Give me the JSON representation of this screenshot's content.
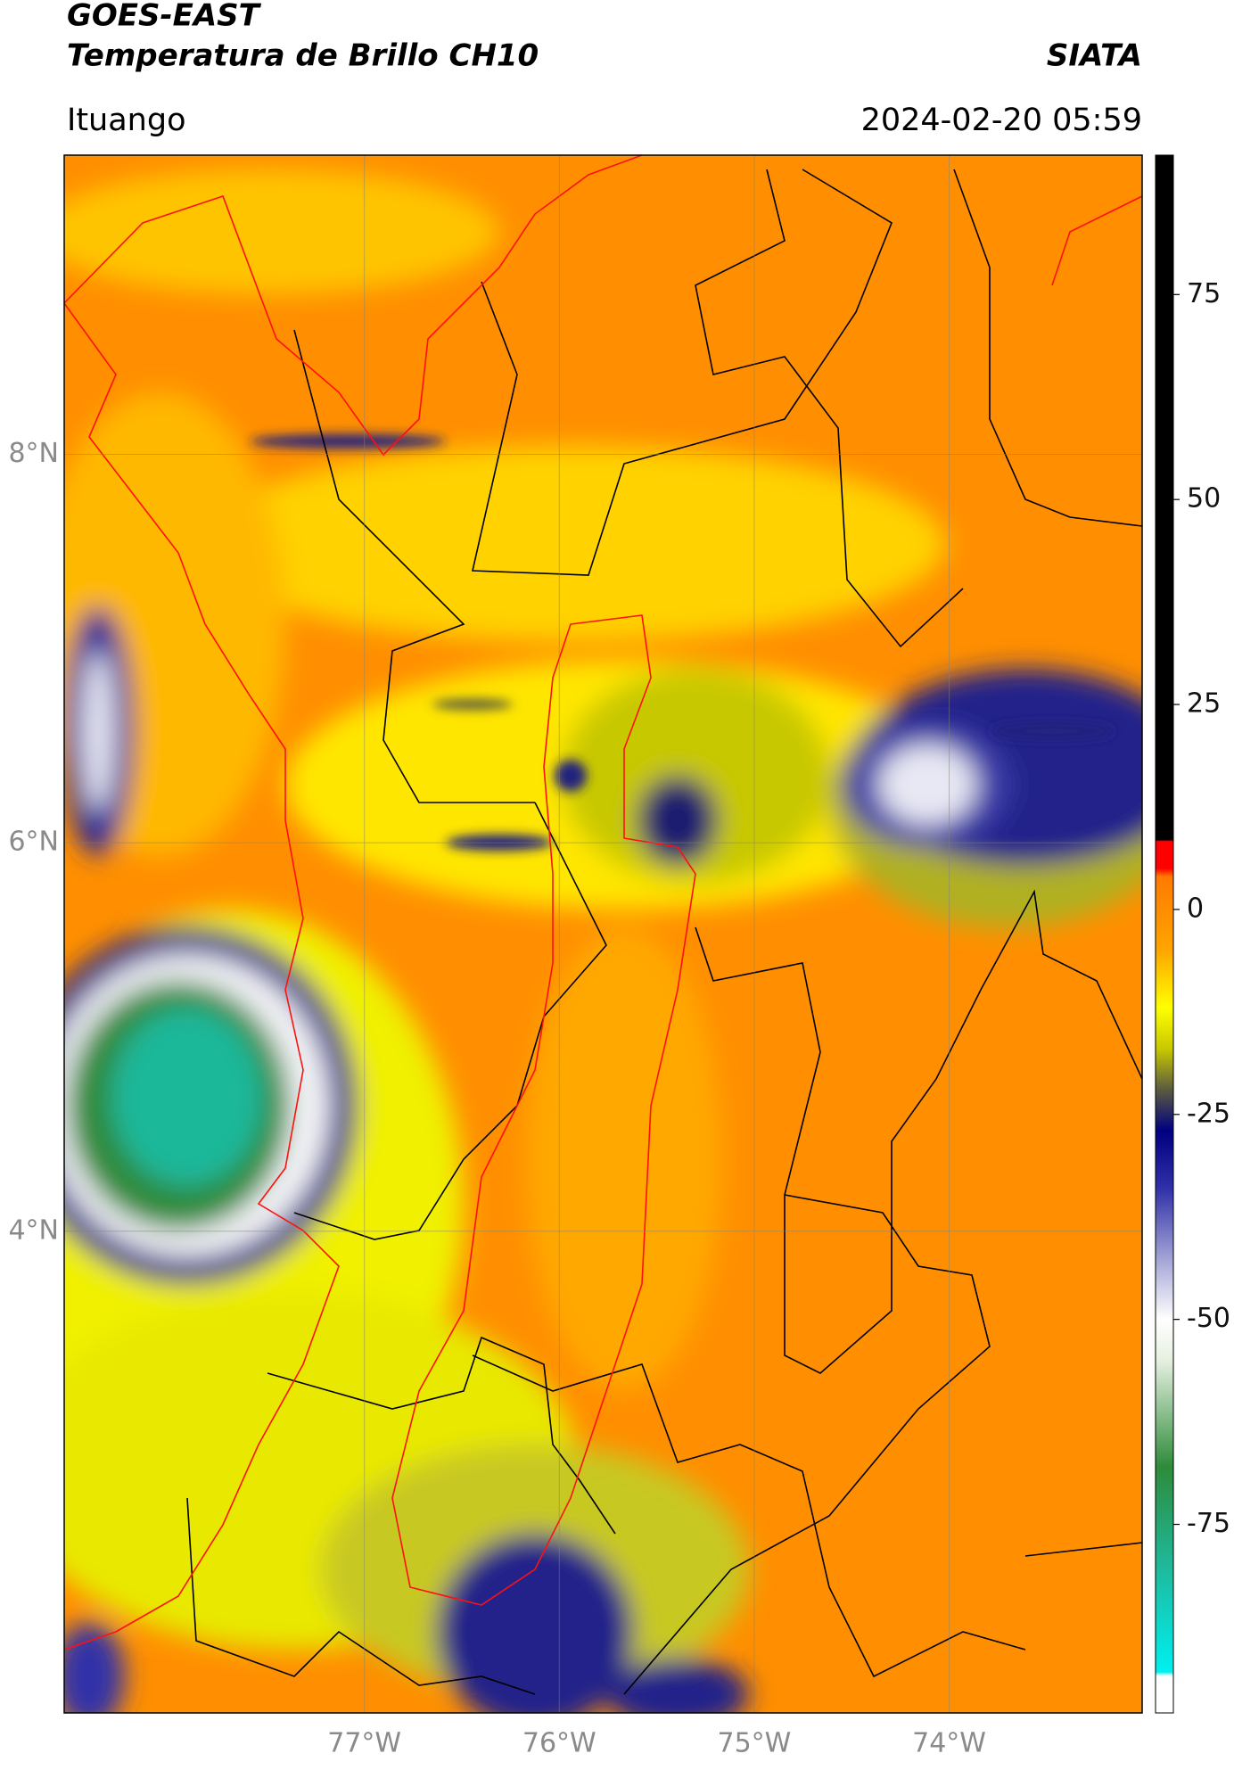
{
  "header": {
    "title_line1": "GOES-EAST",
    "title_line2": "Temperatura de Brillo CH10",
    "org": "SIATA",
    "location": "Ituango",
    "datetime": "2024-02-20 05:59"
  },
  "map": {
    "lon_lim": [
      -78.54,
      -73.01
    ],
    "lat_lim": [
      1.52,
      9.54
    ],
    "lon_ticks": [
      {
        "value": -77,
        "label": "77°W"
      },
      {
        "value": -76,
        "label": "76°W"
      },
      {
        "value": -75,
        "label": "75°W"
      },
      {
        "value": -74,
        "label": "74°W"
      }
    ],
    "lat_ticks": [
      {
        "value": 8,
        "label": "8°N"
      },
      {
        "value": 6,
        "label": "6°N"
      },
      {
        "value": 4,
        "label": "4°N"
      }
    ],
    "grid": true
  },
  "colorbar": {
    "lim": [
      -98,
      92
    ],
    "ticks": [
      -75,
      -50,
      -25,
      0,
      25,
      50,
      75
    ],
    "colormap": [
      {
        "value": -98,
        "color": "#ffffff"
      },
      {
        "value": -93.5,
        "color": "#ffffff"
      },
      {
        "value": -93,
        "color": "#00f0f0"
      },
      {
        "value": -80,
        "color": "#1fb89a"
      },
      {
        "value": -68,
        "color": "#2e8b3a"
      },
      {
        "value": -55,
        "color": "#e6f0e0"
      },
      {
        "value": -50,
        "color": "#ffffff"
      },
      {
        "value": -43,
        "color": "#a8a8d8"
      },
      {
        "value": -34,
        "color": "#3030a8"
      },
      {
        "value": -27,
        "color": "#000080"
      },
      {
        "value": -22,
        "color": "#5a5a40"
      },
      {
        "value": -17,
        "color": "#c8c800"
      },
      {
        "value": -12,
        "color": "#ffff00"
      },
      {
        "value": -5,
        "color": "#ffa500"
      },
      {
        "value": 4,
        "color": "#ff7a00"
      },
      {
        "value": 5,
        "color": "#ff0000"
      },
      {
        "value": 8.3,
        "color": "#ff0000"
      },
      {
        "value": 8.5,
        "color": "#000000"
      },
      {
        "value": 92,
        "color": "#000000"
      }
    ]
  }
}
